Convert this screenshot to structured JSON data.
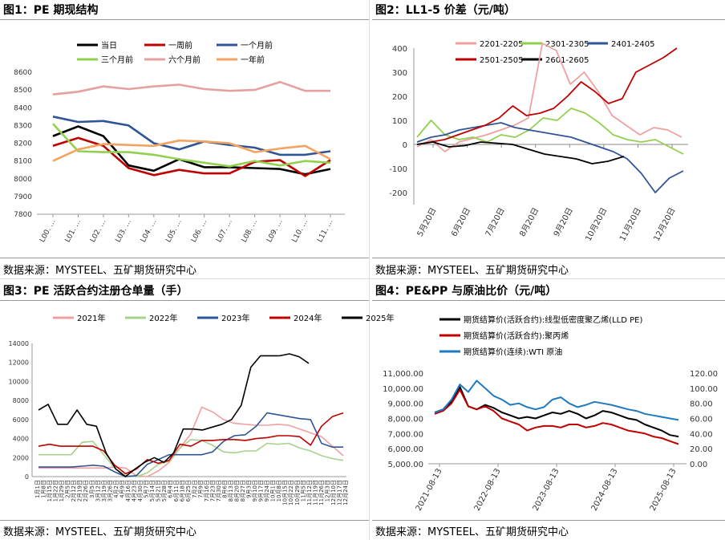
{
  "panels": [
    {
      "title": "图1：PE 期现结构",
      "source": "数据来源：MYSTEEL、五矿期货研究中心",
      "chart_data": {
        "type": "line",
        "categories": [
          "L00. …",
          "L01. …",
          "L02. …",
          "L03. …",
          "L04. …",
          "L05. …",
          "L06. …",
          "L07. …",
          "L08. …",
          "L09. …",
          "L10. …",
          "L11. …"
        ],
        "ylim": [
          7800,
          8600
        ],
        "yticks": [
          7800,
          7900,
          8000,
          8100,
          8200,
          8300,
          8400,
          8500,
          8600
        ],
        "legend_position": "top",
        "series": [
          {
            "name": "当日",
            "color": "#000000",
            "values": [
              8240,
              8295,
              8240,
              8075,
              8045,
              8110,
              8065,
              8065,
              8060,
              8055,
              8025,
              8055
            ]
          },
          {
            "name": "一周前",
            "color": "#c00000",
            "values": [
              8185,
              8230,
              8185,
              8060,
              8020,
              8050,
              8030,
              8030,
              8095,
              8105,
              8015,
              8105
            ]
          },
          {
            "name": "一个月前",
            "color": "#2f5597",
            "values": [
              8350,
              8320,
              8325,
              8300,
              8200,
              8165,
              8210,
              8190,
              8175,
              8135,
              8135,
              8155
            ]
          },
          {
            "name": "三个月前",
            "color": "#92d050",
            "values": [
              8310,
              8155,
              8150,
              8150,
              8135,
              8110,
              8090,
              8070,
              8100,
              8075,
              8100,
              8090
            ]
          },
          {
            "name": "六个月前",
            "color": "#e6a0a0",
            "values": [
              8475,
              8490,
              8520,
              8505,
              8520,
              8530,
              8505,
              8495,
              8500,
              8545,
              8495,
              8495
            ]
          },
          {
            "name": "一年前",
            "color": "#f4a460",
            "values": [
              8100,
              8165,
              8195,
              8190,
              8185,
              8215,
              8210,
              8200,
              8150,
              8170,
              8185,
              8110
            ]
          }
        ]
      }
    },
    {
      "title": "图2：LL1-5 价差（元/吨）",
      "source": "数据来源：MYSTEEL、五矿期货研究中心",
      "chart_data": {
        "type": "line",
        "x_tick_labels": [
          "5月20日",
          "6月20日",
          "7月20日",
          "8月20日",
          "9月20日",
          "10月20日",
          "11月20日",
          "12月20日"
        ],
        "ylim": [
          -250,
          400
        ],
        "yticks": [
          -200,
          -100,
          0,
          100,
          200,
          300,
          400
        ],
        "legend_position": "top",
        "series": [
          {
            "name": "2201-2205",
            "color": "#f0a0a0",
            "values": [
              -10,
              20,
              -30,
              10,
              25,
              40,
              60,
              80,
              110,
              420,
              390,
              250,
              300,
              220,
              120,
              80,
              40,
              70,
              60,
              30
            ]
          },
          {
            "name": "2301-2305",
            "color": "#92d050",
            "values": [
              30,
              100,
              40,
              20,
              30,
              10,
              40,
              30,
              60,
              110,
              100,
              150,
              130,
              90,
              40,
              20,
              10,
              20,
              -10,
              -40
            ]
          },
          {
            "name": "2401-2405",
            "color": "#2f5597",
            "values": [
              10,
              30,
              40,
              60,
              70,
              80,
              90,
              70,
              60,
              50,
              40,
              30,
              10,
              -10,
              -30,
              -60,
              -120,
              -200,
              -140,
              -110
            ]
          },
          {
            "name": "2501-2505",
            "color": "#c00000",
            "values": [
              0,
              10,
              20,
              40,
              60,
              80,
              110,
              160,
              120,
              130,
              150,
              200,
              260,
              220,
              170,
              190,
              300,
              330,
              360,
              400
            ]
          },
          {
            "name": "2601-2605",
            "color": "#000000",
            "values": [
              0,
              10,
              -10,
              -5,
              10,
              5,
              0,
              -20,
              -40,
              -50,
              -60,
              -80,
              -70,
              -50
            ]
          }
        ]
      }
    },
    {
      "title": "图3：PE 活跃合约注册仓单量（手）",
      "source": "数据来源：MYSTEEL、五矿期货研究中心",
      "chart_data": {
        "type": "line",
        "x_tick_labels": [
          "1月1日",
          "1月8日",
          "1月15日",
          "1月22日",
          "1月29日",
          "2月5日",
          "2月12日",
          "2月19日",
          "2月26日",
          "3月5日",
          "3月12日",
          "3月19日",
          "3月26日",
          "4月2日",
          "4月9日",
          "4月16日",
          "4月23日",
          "4月30日",
          "5月7日",
          "5月14日",
          "5月21日",
          "5月28日",
          "6月4日",
          "6月11日",
          "6月18日",
          "6月25日",
          "7月2日",
          "7月9日",
          "7月16日",
          "7月23日",
          "7月30日",
          "8月6日",
          "8月13日",
          "8月20日",
          "8月27日",
          "9月3日",
          "9月10日",
          "9月17日",
          "9月24日",
          "10月1日",
          "10月8日",
          "10月15日",
          "10月22日",
          "10月29日",
          "11月5日",
          "11月12日",
          "11月19日",
          "11月26日",
          "12月3日",
          "12月10日",
          "12月17日",
          "12月24日"
        ],
        "ylim": [
          0,
          14000
        ],
        "yticks": [
          0,
          2000,
          4000,
          6000,
          8000,
          10000,
          12000,
          14000
        ],
        "legend_position": "top",
        "series": [
          {
            "name": "2021年",
            "color": "#f0a0a0",
            "values": [
              900,
              900,
              900,
              900,
              900,
              900,
              900,
              1000,
              900,
              100,
              0,
              600,
              1500,
              3000,
              4500,
              7300,
              6800,
              6000,
              5600,
              5500,
              5400,
              5400,
              5500,
              5400,
              5000,
              4600,
              4200,
              3200,
              2200
            ]
          },
          {
            "name": "2022年",
            "color": "#a9d18e",
            "values": [
              2300,
              2300,
              2300,
              2300,
              3600,
              3700,
              2300,
              900,
              100,
              0,
              400,
              1300,
              1600,
              3000,
              3900,
              3800,
              3300,
              2600,
              2500,
              2700,
              2700,
              3500,
              3400,
              3500,
              3000,
              2700,
              2200,
              1900,
              1700
            ]
          },
          {
            "name": "2023年",
            "color": "#2f5597",
            "values": [
              1000,
              1000,
              1000,
              1000,
              1100,
              1200,
              1100,
              500,
              0,
              100,
              1300,
              1800,
              2300,
              2300,
              2300,
              2300,
              2600,
              3700,
              4300,
              4400,
              5300,
              6700,
              6500,
              6300,
              6100,
              6000,
              3500,
              3100,
              3100
            ]
          },
          {
            "name": "2024年",
            "color": "#c00000",
            "values": [
              3200,
              3400,
              3200,
              3200,
              3200,
              3200,
              2700,
              1200,
              300,
              800,
              1800,
              1400,
              1700,
              3400,
              3200,
              3800,
              3800,
              3900,
              3900,
              3800,
              4000,
              4100,
              4300,
              4300,
              4200,
              3300,
              5300,
              6300,
              6700
            ]
          },
          {
            "name": "2025年",
            "color": "#000000",
            "values": [
              7000,
              7600,
              5500,
              5500,
              7000,
              5500,
              5300,
              2500,
              800,
              0,
              800,
              1500,
              2000,
              1500,
              2500,
              5000,
              5000,
              4900,
              5200,
              5500,
              6000,
              7500,
              11500,
              12700,
              12700,
              12700,
              12900,
              12600,
              11900
            ]
          }
        ]
      }
    },
    {
      "title": "图4：PE&PP 与原油比价（元/吨）",
      "source": "数据来源：MYSTEEL、五矿期货研究中心",
      "chart_data": {
        "type": "line",
        "x_tick_labels": [
          "2021-08-13",
          "2022-08-13",
          "2023-08-13",
          "2024-08-13",
          "2025-08-13"
        ],
        "ylim_left": [
          5000,
          11000
        ],
        "ylim_right": [
          0,
          120
        ],
        "yticks_left": [
          "5,000.00",
          "6,000.00",
          "7,000.00",
          "8,000.00",
          "9,000.00",
          "10,000.00",
          "11,000.00"
        ],
        "yticks_right": [
          "0.00",
          "20.00",
          "40.00",
          "60.00",
          "80.00",
          "100.00",
          "120.00"
        ],
        "legend_position": "top-left",
        "series": [
          {
            "name": "期货结算价(活跃合约):线型低密度聚乙烯(LLD PE)",
            "color": "#000000",
            "axis": "left",
            "values": [
              8400,
              8600,
              9100,
              10100,
              8800,
              8600,
              8900,
              8700,
              8400,
              8200,
              8000,
              8100,
              8000,
              8200,
              8400,
              8300,
              8500,
              8300,
              8000,
              8200,
              8500,
              8400,
              8200,
              8000,
              7900,
              7600,
              7400,
              7200,
              6900,
              6800
            ]
          },
          {
            "name": "期货结算价(活跃合约):聚丙烯",
            "color": "#c00000",
            "axis": "left",
            "values": [
              8300,
              8500,
              9000,
              9900,
              8800,
              8600,
              8800,
              8500,
              8000,
              7800,
              7600,
              7200,
              7400,
              7500,
              7500,
              7400,
              7600,
              7600,
              7400,
              7500,
              7700,
              7600,
              7400,
              7200,
              7100,
              7000,
              6800,
              6700,
              6500,
              6300
            ]
          },
          {
            "name": "期货结算价(连续):WTI 原油",
            "color": "#1f7bc1",
            "axis": "right",
            "values": [
              68,
              72,
              85,
              105,
              95,
              110,
              100,
              90,
              85,
              78,
              80,
              75,
              72,
              75,
              85,
              88,
              80,
              75,
              78,
              82,
              80,
              78,
              75,
              72,
              70,
              66,
              64,
              62,
              60,
              58
            ]
          }
        ]
      }
    }
  ]
}
